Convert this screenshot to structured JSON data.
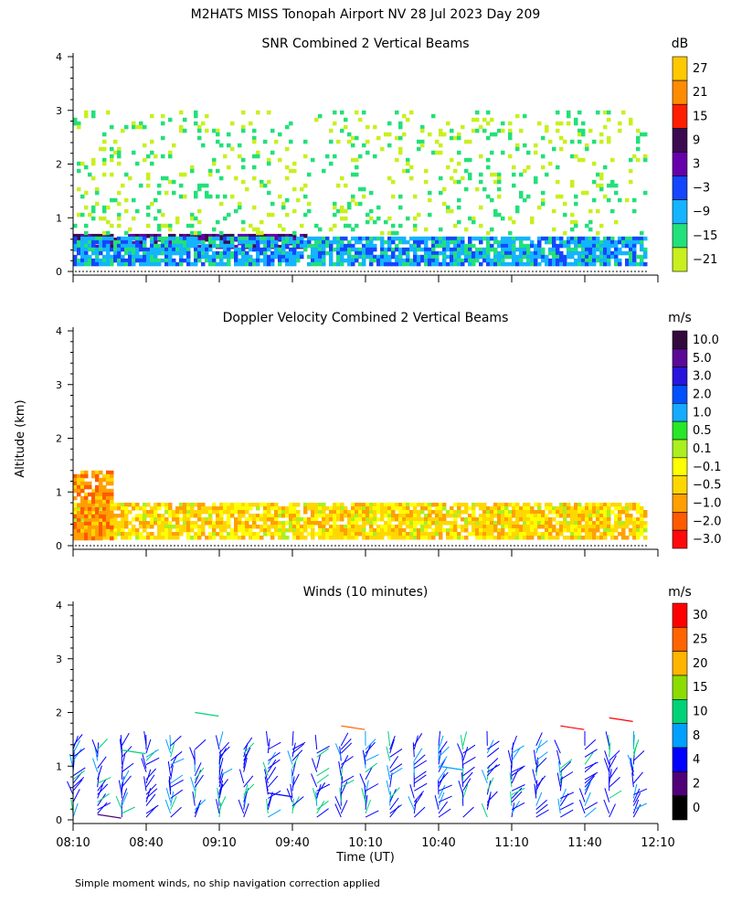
{
  "page": {
    "title": "M2HATS MISS Tonopah Airport NV  28 Jul 2023 Day 209",
    "y_axis_label": "Altitude (km)",
    "x_axis_label": "Time (UT)",
    "footnote": "Simple moment winds, no ship navigation correction applied"
  },
  "chart_data": [
    {
      "type": "heatmap",
      "title": "SNR Combined 2 Vertical Beams",
      "units": "dB",
      "ylim": [
        0,
        4
      ],
      "y_ticks": [
        "0",
        "1",
        "2",
        "3",
        "4"
      ],
      "colorbar": {
        "labels": [
          "27",
          "21",
          "15",
          "9",
          "3",
          "−3",
          "−9",
          "−15",
          "−21"
        ],
        "colors": [
          "#ffc800",
          "#ff8c00",
          "#ff1e00",
          "#3c0a50",
          "#6600aa",
          "#1446ff",
          "#14b4ff",
          "#22e07a",
          "#c8f01e"
        ]
      },
      "features": [
        {
          "name": "strong layer",
          "time_range": [
            "08:10",
            "09:50"
          ],
          "altitude_km": [
            0.45,
            0.7
          ],
          "snr_db": [
            3,
            9
          ]
        },
        {
          "name": "lower boundary layer",
          "time_range": [
            "08:10",
            "12:10"
          ],
          "altitude_km": [
            0.15,
            0.65
          ],
          "snr_db": [
            -15,
            -3
          ]
        },
        {
          "name": "scattered returns",
          "time_range": [
            "08:10",
            "12:10"
          ],
          "altitude_km": [
            0.7,
            3.0
          ],
          "snr_db": [
            -21,
            -15
          ]
        }
      ]
    },
    {
      "type": "heatmap",
      "title": "Doppler Velocity Combined 2 Vertical Beams",
      "units": "m/s",
      "ylim": [
        0,
        4
      ],
      "y_ticks": [
        "0",
        "1",
        "2",
        "3",
        "4"
      ],
      "colorbar": {
        "labels": [
          "10.0",
          "5.0",
          "3.0",
          "2.0",
          "1.0",
          "0.5",
          "0.1",
          "−0.1",
          "−0.5",
          "−1.0",
          "−2.0",
          "−3.0"
        ],
        "colors": [
          "#320a3c",
          "#5a0a96",
          "#2814dc",
          "#0050ff",
          "#14aaff",
          "#28e628",
          "#aaf01e",
          "#ffff00",
          "#ffd700",
          "#ffa000",
          "#ff5a00",
          "#ff0a0a"
        ]
      },
      "features": [
        {
          "name": "boundary layer",
          "time_range": [
            "08:10",
            "12:10"
          ],
          "altitude_km": [
            0.15,
            0.8
          ],
          "velocity_ms": [
            -1.0,
            0.1
          ]
        },
        {
          "name": "early deep layer",
          "time_range": [
            "08:10",
            "08:30"
          ],
          "altitude_km": [
            0.15,
            1.4
          ],
          "velocity_ms": [
            -2.0,
            -0.5
          ]
        }
      ]
    },
    {
      "type": "scatter",
      "title": "Winds (10 minutes)",
      "units": "m/s",
      "ylim": [
        0,
        4
      ],
      "y_ticks": [
        "0",
        "1",
        "2",
        "3",
        "4"
      ],
      "x_ticks": [
        "08:10",
        "08:40",
        "09:10",
        "09:40",
        "10:10",
        "10:40",
        "11:10",
        "11:40",
        "12:10"
      ],
      "colorbar": {
        "labels": [
          "30",
          "25",
          "20",
          "15",
          "10",
          "8",
          "4",
          "2",
          "0"
        ],
        "colors": [
          "#ff0000",
          "#ff6400",
          "#ffb400",
          "#8cdc00",
          "#00d278",
          "#00a0ff",
          "#0000ff",
          "#500078",
          "#000000"
        ]
      },
      "profile_times": [
        "08:10",
        "08:20",
        "08:30",
        "08:40",
        "08:50",
        "09:00",
        "09:10",
        "09:20",
        "09:30",
        "09:40",
        "09:50",
        "10:00",
        "10:10",
        "10:20",
        "10:30",
        "10:40",
        "10:50",
        "11:00",
        "11:10",
        "11:20",
        "11:30",
        "11:40",
        "11:50",
        "12:00"
      ],
      "wind_layers": [
        {
          "altitude_km": 0.1,
          "speed_ms": 3,
          "time": "08:20"
        },
        {
          "altitude_km": 0.5,
          "speed_ms": 6,
          "time": "09:30"
        },
        {
          "altitude_km": 1.0,
          "speed_ms": 8,
          "time": "10:40"
        },
        {
          "altitude_km": 1.3,
          "speed_ms": 10,
          "time": "08:30"
        },
        {
          "altitude_km": 1.75,
          "speed_ms": 25,
          "time": "10:00"
        },
        {
          "altitude_km": 1.75,
          "speed_ms": 30,
          "time": "11:30"
        },
        {
          "altitude_km": 1.9,
          "speed_ms": 30,
          "time": "11:50"
        },
        {
          "altitude_km": 2.0,
          "speed_ms": 10,
          "time": "09:00"
        }
      ]
    }
  ]
}
